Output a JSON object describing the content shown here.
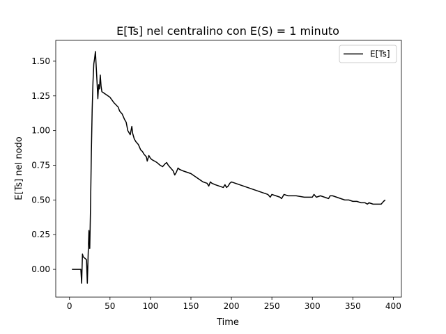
{
  "chart_data": {
    "type": "line",
    "title": "E[Ts] nel centralino con E(S) = 1 minuto",
    "xlabel": "Time",
    "ylabel": "E[Ts] nel nodo",
    "xlim": [
      -17,
      410
    ],
    "ylim": [
      -0.2,
      1.65
    ],
    "x_ticks": [
      0,
      50,
      100,
      150,
      200,
      250,
      300,
      350,
      400
    ],
    "y_ticks": [
      0.0,
      0.25,
      0.5,
      0.75,
      1.0,
      1.25,
      1.5
    ],
    "x_tick_labels": [
      "0",
      "50",
      "100",
      "150",
      "200",
      "250",
      "300",
      "350",
      "400"
    ],
    "y_tick_labels": [
      "0.00",
      "0.25",
      "0.50",
      "0.75",
      "1.00",
      "1.25",
      "1.50"
    ],
    "grid": false,
    "legend": {
      "placement": "top-right",
      "entries": [
        "E[Ts]"
      ]
    },
    "series": [
      {
        "name": "E[Ts]",
        "color": "#000000",
        "points": [
          [
            3,
            0.0
          ],
          [
            14,
            0.0
          ],
          [
            15,
            -0.1
          ],
          [
            16,
            0.11
          ],
          [
            17,
            0.09
          ],
          [
            19,
            0.08
          ],
          [
            21,
            0.07
          ],
          [
            22,
            -0.1
          ],
          [
            23,
            0.1
          ],
          [
            24,
            0.28
          ],
          [
            25,
            0.15
          ],
          [
            26,
            0.46
          ],
          [
            27,
            0.85
          ],
          [
            28,
            1.15
          ],
          [
            29,
            1.35
          ],
          [
            30,
            1.48
          ],
          [
            31,
            1.52
          ],
          [
            32,
            1.57
          ],
          [
            33,
            1.46
          ],
          [
            34,
            1.35
          ],
          [
            35,
            1.23
          ],
          [
            36,
            1.33
          ],
          [
            37,
            1.3
          ],
          [
            38,
            1.4
          ],
          [
            39,
            1.32
          ],
          [
            40,
            1.28
          ],
          [
            45,
            1.26
          ],
          [
            50,
            1.24
          ],
          [
            55,
            1.2
          ],
          [
            60,
            1.17
          ],
          [
            62,
            1.14
          ],
          [
            65,
            1.12
          ],
          [
            68,
            1.08
          ],
          [
            70,
            1.06
          ],
          [
            72,
            1.0
          ],
          [
            75,
            0.97
          ],
          [
            76,
            1.0
          ],
          [
            77,
            1.03
          ],
          [
            78,
            0.98
          ],
          [
            80,
            0.94
          ],
          [
            82,
            0.92
          ],
          [
            85,
            0.9
          ],
          [
            88,
            0.86
          ],
          [
            90,
            0.85
          ],
          [
            92,
            0.83
          ],
          [
            95,
            0.81
          ],
          [
            96,
            0.78
          ],
          [
            97,
            0.8
          ],
          [
            98,
            0.82
          ],
          [
            100,
            0.8
          ],
          [
            102,
            0.79
          ],
          [
            105,
            0.78
          ],
          [
            108,
            0.77
          ],
          [
            110,
            0.76
          ],
          [
            112,
            0.75
          ],
          [
            115,
            0.74
          ],
          [
            118,
            0.76
          ],
          [
            120,
            0.77
          ],
          [
            122,
            0.75
          ],
          [
            125,
            0.73
          ],
          [
            128,
            0.71
          ],
          [
            130,
            0.68
          ],
          [
            132,
            0.7
          ],
          [
            134,
            0.73
          ],
          [
            136,
            0.72
          ],
          [
            140,
            0.71
          ],
          [
            145,
            0.7
          ],
          [
            150,
            0.69
          ],
          [
            155,
            0.67
          ],
          [
            160,
            0.65
          ],
          [
            165,
            0.63
          ],
          [
            170,
            0.62
          ],
          [
            172,
            0.6
          ],
          [
            174,
            0.63
          ],
          [
            176,
            0.62
          ],
          [
            180,
            0.61
          ],
          [
            185,
            0.6
          ],
          [
            190,
            0.59
          ],
          [
            192,
            0.61
          ],
          [
            194,
            0.59
          ],
          [
            196,
            0.6
          ],
          [
            198,
            0.62
          ],
          [
            200,
            0.63
          ],
          [
            205,
            0.62
          ],
          [
            210,
            0.61
          ],
          [
            215,
            0.6
          ],
          [
            220,
            0.59
          ],
          [
            225,
            0.58
          ],
          [
            230,
            0.57
          ],
          [
            235,
            0.56
          ],
          [
            240,
            0.55
          ],
          [
            245,
            0.54
          ],
          [
            248,
            0.52
          ],
          [
            250,
            0.54
          ],
          [
            255,
            0.53
          ],
          [
            260,
            0.52
          ],
          [
            262,
            0.51
          ],
          [
            265,
            0.54
          ],
          [
            270,
            0.53
          ],
          [
            280,
            0.53
          ],
          [
            290,
            0.52
          ],
          [
            300,
            0.52
          ],
          [
            302,
            0.54
          ],
          [
            305,
            0.52
          ],
          [
            310,
            0.53
          ],
          [
            315,
            0.52
          ],
          [
            320,
            0.51
          ],
          [
            322,
            0.53
          ],
          [
            325,
            0.53
          ],
          [
            330,
            0.52
          ],
          [
            335,
            0.51
          ],
          [
            340,
            0.5
          ],
          [
            345,
            0.5
          ],
          [
            350,
            0.49
          ],
          [
            355,
            0.49
          ],
          [
            360,
            0.48
          ],
          [
            365,
            0.48
          ],
          [
            368,
            0.47
          ],
          [
            370,
            0.48
          ],
          [
            375,
            0.47
          ],
          [
            380,
            0.47
          ],
          [
            385,
            0.47
          ],
          [
            388,
            0.49
          ],
          [
            390,
            0.5
          ]
        ]
      }
    ]
  }
}
